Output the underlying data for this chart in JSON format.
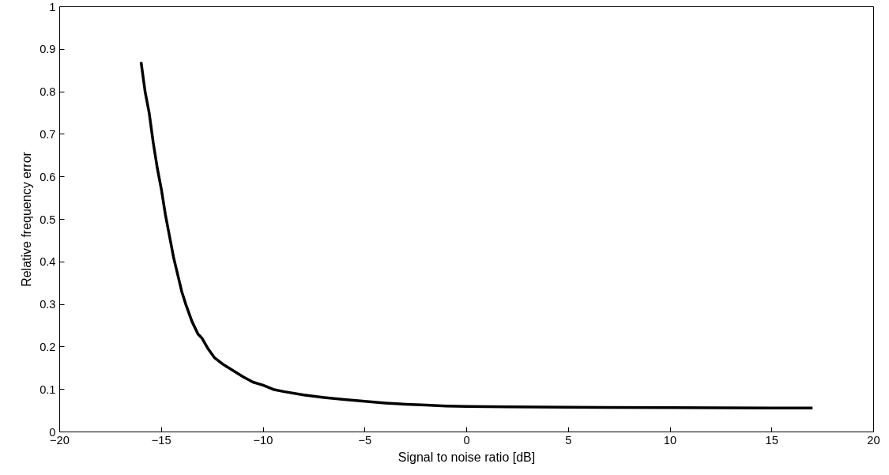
{
  "chart_data": {
    "type": "line",
    "xlabel": "Signal to noise ratio [dB]",
    "ylabel": "Relative frequency error",
    "x": [
      -16,
      -15.8,
      -15.6,
      -15.4,
      -15.2,
      -15.0,
      -14.8,
      -14.6,
      -14.4,
      -14.2,
      -14,
      -13.8,
      -13.5,
      -13.2,
      -13,
      -12.7,
      -12.4,
      -12,
      -11.5,
      -11,
      -10.5,
      -10,
      -9.5,
      -9,
      -8,
      -7,
      -6,
      -5,
      -4,
      -3,
      -2,
      -1,
      0,
      2,
      5,
      10,
      15,
      17
    ],
    "series": [
      {
        "color": "#000000",
        "values": [
          0.87,
          0.8,
          0.75,
          0.68,
          0.62,
          0.57,
          0.51,
          0.46,
          0.41,
          0.37,
          0.33,
          0.3,
          0.26,
          0.23,
          0.22,
          0.195,
          0.175,
          0.16,
          0.145,
          0.13,
          0.117,
          0.11,
          0.1,
          0.095,
          0.087,
          0.081,
          0.076,
          0.072,
          0.068,
          0.065,
          0.063,
          0.061,
          0.06,
          0.059,
          0.058,
          0.057,
          0.056,
          0.056
        ]
      }
    ],
    "xlim": [
      -20,
      20
    ],
    "ylim": [
      0,
      1
    ],
    "xticks": [
      -20,
      -15,
      -10,
      -5,
      0,
      5,
      10,
      15,
      20
    ],
    "yticks": [
      0,
      0.1,
      0.2,
      0.3,
      0.4,
      0.5,
      0.6,
      0.7,
      0.8,
      0.9,
      1
    ],
    "grid": false,
    "marker": "none",
    "line_style": "solid"
  }
}
